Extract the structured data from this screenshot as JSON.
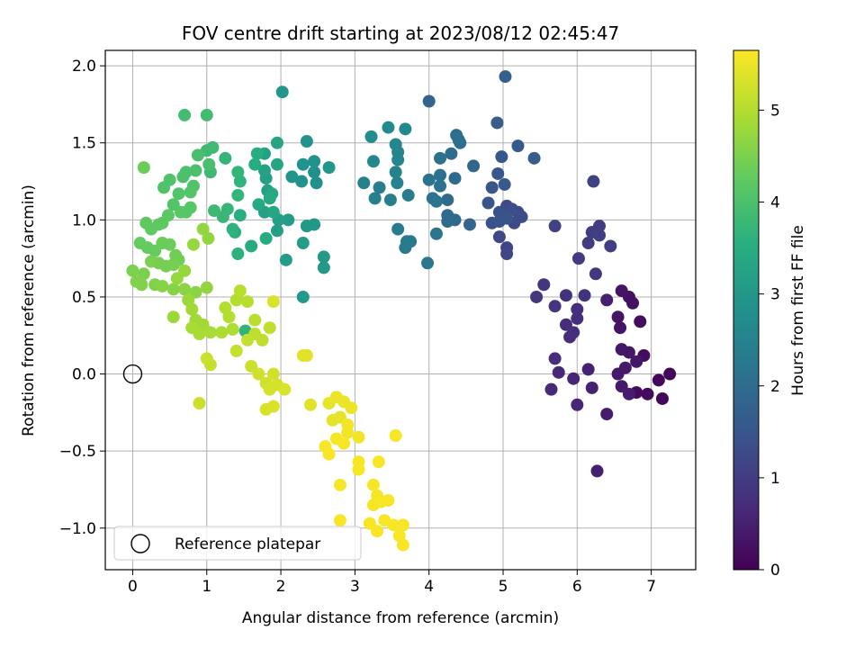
{
  "chart_data": {
    "type": "scatter",
    "title": "FOV centre drift starting at 2023/08/12 02:45:47",
    "xlabel": "Angular distance from reference (arcmin)",
    "ylabel": "Rotation from reference (arcmin)",
    "xlim": [
      -0.37,
      7.6
    ],
    "ylim": [
      -1.27,
      2.1
    ],
    "xticks": [
      0,
      1,
      2,
      3,
      4,
      5,
      6,
      7
    ],
    "yticks": [
      -1.0,
      -0.5,
      0.0,
      0.5,
      1.0,
      1.5,
      2.0
    ],
    "xtick_labels": [
      "0",
      "1",
      "2",
      "3",
      "4",
      "5",
      "6",
      "7"
    ],
    "ytick_labels": [
      "−1.0",
      "−0.5",
      "0.0",
      "0.5",
      "1.0",
      "1.5",
      "2.0"
    ],
    "grid": true,
    "colormap": "viridis",
    "colorbar": {
      "label": "Hours from first FF file",
      "range": [
        0,
        5.65
      ],
      "ticks": [
        0,
        1,
        2,
        3,
        4,
        5
      ],
      "tick_labels": [
        "0",
        "1",
        "2",
        "3",
        "4",
        "5"
      ]
    },
    "legend": {
      "position": "lower-left",
      "entries": [
        "Reference platepar"
      ]
    },
    "reference_point": {
      "x": 0,
      "y": 0,
      "label": "Reference platepar"
    },
    "points": [
      [
        7.25,
        0.0,
        0.1
      ],
      [
        7.15,
        -0.16,
        0.1
      ],
      [
        7.1,
        -0.04,
        0.1
      ],
      [
        6.95,
        -0.13,
        0.15
      ],
      [
        6.8,
        -0.12,
        0.15
      ],
      [
        6.9,
        0.12,
        0.2
      ],
      [
        6.85,
        0.34,
        0.2
      ],
      [
        6.7,
        0.5,
        0.25
      ],
      [
        6.75,
        0.46,
        0.25
      ],
      [
        6.6,
        0.54,
        0.3
      ],
      [
        6.55,
        0.37,
        0.3
      ],
      [
        6.58,
        0.3,
        0.3
      ],
      [
        6.6,
        0.16,
        0.35
      ],
      [
        6.7,
        0.14,
        0.35
      ],
      [
        6.8,
        0.08,
        0.35
      ],
      [
        6.65,
        0.04,
        0.4
      ],
      [
        6.55,
        0.0,
        0.4
      ],
      [
        6.6,
        -0.08,
        0.4
      ],
      [
        6.7,
        -0.13,
        0.45
      ],
      [
        6.4,
        -0.26,
        0.45
      ],
      [
        6.27,
        -0.63,
        0.5
      ],
      [
        6.4,
        0.48,
        0.5
      ],
      [
        6.2,
        -0.09,
        0.55
      ],
      [
        6.15,
        0.03,
        0.55
      ],
      [
        6.0,
        -0.2,
        0.6
      ],
      [
        5.95,
        -0.03,
        0.6
      ],
      [
        5.75,
        0.01,
        0.65
      ],
      [
        5.65,
        -0.1,
        0.65
      ],
      [
        5.7,
        0.1,
        0.7
      ],
      [
        5.85,
        0.32,
        0.7
      ],
      [
        5.9,
        0.24,
        0.7
      ],
      [
        5.95,
        0.27,
        0.75
      ],
      [
        6.0,
        0.42,
        0.75
      ],
      [
        6.0,
        0.36,
        0.75
      ],
      [
        5.85,
        0.51,
        0.8
      ],
      [
        6.1,
        0.51,
        0.8
      ],
      [
        5.7,
        0.44,
        0.85
      ],
      [
        5.55,
        0.58,
        0.85
      ],
      [
        5.45,
        0.5,
        0.9
      ],
      [
        6.25,
        0.65,
        0.9
      ],
      [
        6.02,
        0.75,
        0.95
      ],
      [
        6.15,
        0.85,
        0.95
      ],
      [
        6.2,
        0.92,
        1.0
      ],
      [
        6.3,
        0.96,
        1.0
      ],
      [
        6.3,
        0.9,
        1.05
      ],
      [
        6.45,
        0.83,
        1.05
      ],
      [
        6.22,
        1.25,
        1.1
      ],
      [
        5.7,
        0.96,
        1.1
      ],
      [
        5.05,
        0.82,
        1.15
      ],
      [
        5.05,
        0.78,
        1.2
      ],
      [
        4.95,
        0.89,
        1.2
      ],
      [
        5.15,
        0.98,
        1.25
      ],
      [
        5.2,
        1.05,
        1.25
      ],
      [
        5.25,
        1.02,
        1.3
      ],
      [
        5.05,
        1.09,
        1.3
      ],
      [
        5.12,
        1.07,
        1.35
      ],
      [
        4.95,
        1.05,
        1.4
      ],
      [
        4.85,
        0.98,
        1.4
      ],
      [
        4.95,
        0.99,
        1.45
      ],
      [
        5.05,
        1.01,
        1.45
      ],
      [
        4.8,
        1.11,
        1.5
      ],
      [
        4.85,
        1.21,
        1.5
      ],
      [
        4.93,
        1.3,
        1.55
      ],
      [
        4.98,
        1.41,
        1.55
      ],
      [
        5.02,
        1.23,
        1.6
      ],
      [
        5.2,
        1.48,
        1.6
      ],
      [
        4.92,
        1.63,
        1.65
      ],
      [
        5.42,
        1.4,
        1.65
      ],
      [
        5.03,
        1.93,
        1.7
      ],
      [
        4.0,
        1.77,
        1.8
      ],
      [
        4.6,
        1.35,
        1.85
      ],
      [
        4.55,
        0.97,
        1.85
      ],
      [
        4.35,
        1.0,
        1.9
      ],
      [
        4.25,
        1.03,
        1.9
      ],
      [
        4.25,
        0.99,
        1.95
      ],
      [
        4.25,
        1.13,
        1.95
      ],
      [
        4.35,
        1.27,
        1.95
      ],
      [
        4.3,
        1.43,
        2.0
      ],
      [
        4.37,
        1.55,
        2.0
      ],
      [
        4.42,
        1.5,
        2.05
      ],
      [
        4.4,
        1.52,
        2.05
      ],
      [
        4.15,
        1.4,
        2.1
      ],
      [
        4.15,
        1.22,
        2.1
      ],
      [
        4.15,
        1.29,
        2.1
      ],
      [
        4.0,
        1.26,
        2.15
      ],
      [
        4.05,
        1.14,
        2.15
      ],
      [
        4.1,
        1.12,
        2.2
      ],
      [
        4.1,
        0.91,
        2.2
      ],
      [
        3.98,
        0.72,
        2.25
      ],
      [
        3.75,
        0.86,
        2.25
      ],
      [
        3.7,
        0.86,
        2.3
      ],
      [
        3.68,
        0.82,
        2.3
      ],
      [
        3.58,
        0.94,
        2.35
      ],
      [
        3.72,
        1.16,
        2.35
      ],
      [
        3.48,
        1.13,
        2.4
      ],
      [
        3.33,
        1.21,
        2.4
      ],
      [
        3.27,
        1.14,
        2.45
      ],
      [
        3.12,
        1.24,
        2.45
      ],
      [
        3.57,
        1.24,
        2.5
      ],
      [
        3.55,
        1.31,
        2.5
      ],
      [
        3.58,
        1.44,
        2.55
      ],
      [
        3.58,
        1.39,
        2.55
      ],
      [
        3.55,
        1.49,
        2.6
      ],
      [
        3.25,
        1.38,
        2.6
      ],
      [
        3.45,
        1.6,
        2.65
      ],
      [
        3.68,
        1.59,
        2.65
      ],
      [
        3.22,
        1.54,
        2.7
      ],
      [
        2.48,
        1.24,
        2.8
      ],
      [
        2.45,
        1.31,
        2.8
      ],
      [
        2.45,
        1.38,
        2.85
      ],
      [
        2.28,
        1.25,
        2.85
      ],
      [
        2.3,
        1.36,
        2.85
      ],
      [
        2.35,
        1.51,
        2.9
      ],
      [
        2.15,
        1.28,
        2.9
      ],
      [
        2.02,
        1.83,
        2.95
      ],
      [
        2.65,
        1.34,
        2.95
      ],
      [
        2.45,
        0.97,
        3.0
      ],
      [
        2.35,
        0.96,
        3.0
      ],
      [
        2.3,
        0.5,
        3.05
      ],
      [
        2.58,
        0.69,
        3.05
      ],
      [
        2.58,
        0.76,
        3.05
      ],
      [
        2.3,
        0.85,
        3.1
      ],
      [
        2.1,
        1.0,
        3.1
      ],
      [
        2.07,
        0.74,
        3.1
      ],
      [
        1.95,
        0.93,
        3.15
      ],
      [
        1.97,
        1.0,
        3.15
      ],
      [
        1.82,
        1.19,
        3.2
      ],
      [
        1.78,
        1.05,
        3.2
      ],
      [
        1.8,
        1.27,
        3.2
      ],
      [
        1.78,
        1.32,
        3.25
      ],
      [
        1.78,
        1.43,
        3.25
      ],
      [
        1.95,
        1.36,
        3.3
      ],
      [
        1.95,
        1.5,
        3.3
      ],
      [
        1.88,
        1.17,
        3.35
      ],
      [
        1.9,
        1.05,
        3.35
      ],
      [
        1.85,
        1.14,
        3.4
      ],
      [
        1.7,
        1.1,
        3.4
      ],
      [
        1.8,
        0.88,
        3.45
      ],
      [
        1.6,
        0.83,
        3.45
      ],
      [
        1.65,
        1.36,
        3.5
      ],
      [
        1.68,
        1.43,
        3.5
      ],
      [
        1.45,
        1.03,
        3.55
      ],
      [
        1.38,
        0.92,
        3.55
      ],
      [
        1.35,
        0.94,
        3.6
      ],
      [
        1.42,
        0.78,
        3.6
      ],
      [
        1.52,
        0.28,
        3.65
      ],
      [
        1.45,
        1.25,
        3.65
      ],
      [
        1.42,
        1.16,
        3.7
      ],
      [
        1.42,
        1.31,
        3.7
      ],
      [
        1.25,
        1.4,
        3.7
      ],
      [
        1.28,
        1.07,
        3.75
      ],
      [
        1.22,
        1.02,
        3.75
      ],
      [
        1.1,
        1.06,
        3.8
      ],
      [
        1.05,
        1.31,
        3.8
      ],
      [
        1.08,
        1.47,
        3.85
      ],
      [
        1.0,
        1.45,
        3.85
      ],
      [
        1.0,
        1.68,
        3.9
      ],
      [
        0.7,
        1.68,
        3.9
      ],
      [
        0.88,
        1.42,
        3.95
      ],
      [
        1.03,
        1.36,
        3.95
      ],
      [
        0.85,
        1.32,
        4.0
      ],
      [
        0.72,
        1.31,
        4.0
      ],
      [
        0.68,
        1.28,
        4.0
      ],
      [
        0.5,
        1.26,
        4.05
      ],
      [
        0.42,
        1.21,
        4.05
      ],
      [
        0.82,
        1.22,
        4.05
      ],
      [
        0.78,
        1.18,
        4.1
      ],
      [
        0.62,
        1.17,
        4.1
      ],
      [
        0.55,
        1.1,
        4.1
      ],
      [
        0.65,
        1.05,
        4.15
      ],
      [
        0.72,
        1.05,
        4.15
      ],
      [
        0.78,
        1.08,
        4.15
      ],
      [
        0.48,
        1.03,
        4.2
      ],
      [
        0.4,
        0.98,
        4.2
      ],
      [
        0.35,
        0.97,
        4.25
      ],
      [
        0.18,
        0.98,
        4.25
      ],
      [
        0.25,
        0.94,
        4.25
      ],
      [
        0.1,
        0.85,
        4.3
      ],
      [
        0.2,
        0.82,
        4.3
      ],
      [
        0.3,
        0.8,
        4.3
      ],
      [
        0.4,
        0.85,
        4.35
      ],
      [
        0.5,
        0.84,
        4.35
      ],
      [
        0.15,
        1.34,
        4.35
      ],
      [
        0.58,
        0.77,
        4.4
      ],
      [
        0.62,
        0.74,
        4.4
      ],
      [
        0.55,
        0.71,
        4.45
      ],
      [
        0.45,
        0.7,
        4.45
      ],
      [
        0.35,
        0.72,
        4.45
      ],
      [
        0.25,
        0.73,
        4.5
      ],
      [
        0.0,
        0.67,
        4.5
      ],
      [
        0.15,
        0.65,
        4.5
      ],
      [
        0.05,
        0.6,
        4.55
      ],
      [
        0.12,
        0.58,
        4.55
      ],
      [
        0.3,
        0.58,
        4.55
      ],
      [
        0.4,
        0.57,
        4.6
      ],
      [
        0.55,
        0.55,
        4.6
      ],
      [
        0.7,
        0.55,
        4.65
      ],
      [
        0.85,
        0.53,
        4.65
      ],
      [
        1.0,
        0.56,
        4.7
      ],
      [
        0.95,
        0.94,
        4.7
      ],
      [
        1.02,
        0.88,
        4.7
      ],
      [
        0.82,
        0.84,
        4.75
      ],
      [
        0.7,
        0.67,
        4.75
      ],
      [
        0.6,
        0.62,
        4.75
      ],
      [
        0.55,
        0.37,
        4.8
      ],
      [
        0.75,
        0.48,
        4.8
      ],
      [
        0.8,
        0.42,
        4.85
      ],
      [
        0.85,
        0.35,
        4.85
      ],
      [
        0.95,
        0.32,
        4.85
      ],
      [
        0.8,
        0.3,
        4.9
      ],
      [
        0.9,
        0.26,
        4.9
      ],
      [
        1.05,
        0.27,
        4.9
      ],
      [
        1.2,
        0.27,
        4.95
      ],
      [
        1.35,
        0.29,
        4.95
      ],
      [
        1.3,
        0.37,
        5.0
      ],
      [
        1.25,
        0.43,
        5.0
      ],
      [
        1.4,
        0.48,
        5.0
      ],
      [
        1.45,
        0.54,
        5.05
      ],
      [
        1.55,
        0.47,
        5.05
      ],
      [
        1.65,
        0.35,
        5.05
      ],
      [
        1.85,
        0.3,
        5.1
      ],
      [
        1.75,
        0.22,
        5.1
      ],
      [
        1.65,
        0.26,
        5.1
      ],
      [
        1.55,
        0.22,
        5.15
      ],
      [
        1.4,
        0.15,
        5.15
      ],
      [
        1.05,
        0.06,
        5.15
      ],
      [
        1.0,
        0.1,
        5.2
      ],
      [
        0.9,
        -0.19,
        5.2
      ],
      [
        1.6,
        0.05,
        5.2
      ],
      [
        1.7,
        0.0,
        5.25
      ],
      [
        1.9,
        0.0,
        5.25
      ],
      [
        1.8,
        -0.06,
        5.25
      ],
      [
        1.95,
        -0.07,
        5.3
      ],
      [
        1.85,
        -0.1,
        5.3
      ],
      [
        1.8,
        -0.23,
        5.3
      ],
      [
        1.9,
        -0.21,
        5.35
      ],
      [
        2.05,
        -0.1,
        5.35
      ],
      [
        1.9,
        0.47,
        5.35
      ],
      [
        2.35,
        0.12,
        5.4
      ],
      [
        2.3,
        0.12,
        5.4
      ],
      [
        2.4,
        -0.2,
        5.4
      ],
      [
        2.65,
        -0.19,
        5.45
      ],
      [
        2.7,
        -0.3,
        5.45
      ],
      [
        2.8,
        -0.28,
        5.45
      ],
      [
        2.75,
        -0.15,
        5.5
      ],
      [
        2.85,
        -0.18,
        5.5
      ],
      [
        2.95,
        -0.22,
        5.5
      ],
      [
        2.9,
        -0.33,
        5.55
      ],
      [
        2.9,
        -0.38,
        5.55
      ],
      [
        3.05,
        -0.41,
        5.55
      ],
      [
        2.75,
        -0.42,
        5.6
      ],
      [
        2.85,
        -0.45,
        5.6
      ],
      [
        2.6,
        -0.47,
        5.6
      ],
      [
        2.65,
        -0.52,
        5.6
      ],
      [
        2.8,
        -0.72,
        5.6
      ],
      [
        2.8,
        -0.95,
        5.6
      ],
      [
        3.05,
        -0.57,
        5.6
      ],
      [
        3.05,
        -0.62,
        5.6
      ],
      [
        3.32,
        -0.57,
        5.6
      ],
      [
        3.25,
        -0.72,
        5.6
      ],
      [
        3.3,
        -0.79,
        5.6
      ],
      [
        3.35,
        -0.83,
        5.6
      ],
      [
        3.45,
        -0.82,
        5.6
      ],
      [
        3.25,
        -0.85,
        5.6
      ],
      [
        3.2,
        -0.97,
        5.6
      ],
      [
        3.3,
        -1.02,
        5.6
      ],
      [
        3.4,
        -0.95,
        5.6
      ],
      [
        3.52,
        -0.98,
        5.6
      ],
      [
        3.55,
        -0.4,
        5.6
      ],
      [
        3.6,
        -1.05,
        5.6
      ],
      [
        3.65,
        -0.98,
        5.6
      ],
      [
        3.65,
        -1.11,
        5.6
      ]
    ]
  }
}
